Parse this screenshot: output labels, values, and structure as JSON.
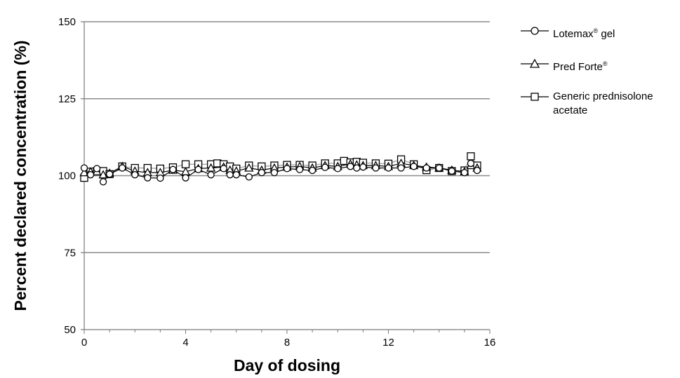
{
  "chart_data": {
    "type": "line",
    "title": "",
    "xlabel": "Day of dosing",
    "ylabel": "Percent declared concentration (%)",
    "xlim": [
      0,
      16
    ],
    "ylim": [
      50,
      150
    ],
    "xticks": [
      0,
      4,
      8,
      12,
      16
    ],
    "yticks": [
      50,
      75,
      100,
      125,
      150
    ],
    "grid": "horizontal",
    "legend_position": "right",
    "series": [
      {
        "name": "Lotemax® gel",
        "label_main": "Lotemax",
        "label_sup": "®",
        "label_rest": " gel",
        "marker": "circle",
        "x": [
          0,
          0.25,
          0.5,
          0.75,
          1,
          1.5,
          2,
          2.5,
          3,
          3.5,
          4,
          4.5,
          5,
          5.5,
          5.75,
          6,
          6.5,
          7,
          7.5,
          8,
          8.5,
          9,
          9.5,
          10,
          10.5,
          10.75,
          11,
          11.5,
          12,
          12.5,
          13,
          13.5,
          14,
          14.5,
          15,
          15.25,
          15.5
        ],
        "y": [
          102.5,
          100.3,
          102.3,
          98,
          100.5,
          102.5,
          100.3,
          99.3,
          99.2,
          102,
          99.3,
          102,
          100.3,
          102.3,
          100.3,
          100.3,
          99.6,
          101,
          101,
          102.3,
          102,
          101.7,
          102.7,
          102.3,
          103,
          102.5,
          102.8,
          102.5,
          102.5,
          102.5,
          103,
          102.5,
          102.5,
          101.5,
          101,
          104,
          101.7
        ]
      },
      {
        "name": "Pred Forte®",
        "label_main": "Pred Forte",
        "label_sup": "®",
        "label_rest": "",
        "marker": "triangle",
        "x": [
          0,
          0.25,
          0.5,
          0.75,
          1,
          1.5,
          2,
          2.5,
          3,
          3.5,
          4,
          4.5,
          5,
          5.5,
          5.75,
          6,
          6.5,
          7,
          7.5,
          8,
          8.5,
          9,
          9.5,
          10,
          10.5,
          10.75,
          11,
          11.5,
          12,
          12.5,
          13,
          13.5,
          14,
          14.5,
          15,
          15.25,
          15.5
        ],
        "y": [
          101,
          101.3,
          101.3,
          100.3,
          100.8,
          103,
          101.5,
          101,
          101,
          101.8,
          101.3,
          102.3,
          102.5,
          102.8,
          101.8,
          101.5,
          102.5,
          101.8,
          102.5,
          102.8,
          103,
          102.5,
          103.3,
          103,
          103.8,
          103.5,
          103.3,
          103.3,
          103,
          104,
          103.3,
          102.8,
          102.5,
          101.8,
          101.3,
          103.3,
          102.5
        ]
      },
      {
        "name": "Generic prednisolone acetate",
        "label_main": "Generic prednisolone acetate",
        "label_sup": "",
        "label_rest": "",
        "marker": "square",
        "x": [
          0,
          0.25,
          0.5,
          0.75,
          1,
          1.5,
          2,
          2.5,
          3,
          3.5,
          4,
          4.5,
          5,
          5.25,
          5.5,
          5.75,
          6,
          6.5,
          7,
          7.5,
          8,
          8.5,
          9,
          9.5,
          10,
          10.25,
          10.5,
          10.75,
          11,
          11.5,
          12,
          12.5,
          13,
          13.5,
          14,
          14.5,
          15,
          15.25,
          15.5
        ],
        "y": [
          99.3,
          101.3,
          101.5,
          101.5,
          100.5,
          103,
          102.5,
          102.5,
          102.3,
          102.7,
          103.7,
          103.7,
          103.7,
          104,
          103.7,
          103,
          102.3,
          103.3,
          103,
          103.3,
          103.5,
          103.5,
          103.3,
          104,
          104,
          104.8,
          104.3,
          104.5,
          104.2,
          104,
          103.9,
          105.3,
          103.7,
          101.8,
          102.5,
          101.5,
          101.7,
          106.3,
          103.3
        ]
      }
    ]
  }
}
